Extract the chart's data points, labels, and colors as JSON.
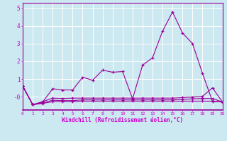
{
  "background_color": "#cce8f0",
  "line_color": "#990099",
  "grid_color": "#ffffff",
  "xlabel": "Windchill (Refroidissement éolien,°C)",
  "xlabel_color": "#cc00cc",
  "tick_color": "#cc00cc",
  "xlim": [
    0,
    20
  ],
  "ylim": [
    -0.75,
    5.3
  ],
  "yticks": [
    0,
    1,
    2,
    3,
    4,
    5
  ],
  "ytick_labels": [
    "-0",
    "1",
    "2",
    "3",
    "4",
    "5"
  ],
  "xticks": [
    0,
    1,
    2,
    3,
    4,
    5,
    6,
    7,
    8,
    9,
    10,
    11,
    12,
    13,
    14,
    15,
    16,
    17,
    18,
    19,
    20
  ],
  "line1_x": [
    0,
    1,
    2,
    3,
    4,
    5,
    6,
    7,
    8,
    9,
    10,
    11,
    12,
    13,
    14,
    15,
    16,
    17,
    18,
    19,
    20
  ],
  "line1_y": [
    0.6,
    -0.45,
    -0.3,
    0.45,
    0.38,
    0.38,
    1.1,
    0.93,
    1.5,
    1.38,
    1.42,
    -0.12,
    1.78,
    2.2,
    3.7,
    4.78,
    3.6,
    3.0,
    1.32,
    -0.27,
    -0.3
  ],
  "line2_x": [
    0,
    1,
    2,
    3,
    4,
    5,
    6,
    7,
    8,
    9,
    10,
    11,
    12,
    13,
    14,
    15,
    16,
    17,
    18,
    19,
    20
  ],
  "line2_y": [
    0.6,
    -0.45,
    -0.28,
    -0.08,
    -0.1,
    -0.08,
    -0.08,
    -0.08,
    -0.08,
    -0.08,
    -0.08,
    -0.08,
    -0.08,
    -0.08,
    -0.08,
    -0.08,
    -0.05,
    -0.02,
    0.02,
    0.5,
    -0.3
  ],
  "line3_x": [
    0,
    1,
    2,
    3,
    4,
    5,
    6,
    7,
    8,
    9,
    10,
    11,
    12,
    13,
    14,
    15,
    16,
    17,
    18,
    19,
    20
  ],
  "line3_y": [
    0.6,
    -0.45,
    -0.35,
    -0.2,
    -0.22,
    -0.22,
    -0.18,
    -0.18,
    -0.18,
    -0.18,
    -0.18,
    -0.18,
    -0.18,
    -0.18,
    -0.18,
    -0.18,
    -0.15,
    -0.12,
    -0.1,
    -0.1,
    -0.3
  ],
  "line4_x": [
    0,
    1,
    2,
    3,
    4,
    5,
    6,
    7,
    8,
    9,
    10,
    11,
    12,
    13,
    14,
    15,
    16,
    17,
    18,
    19,
    20
  ],
  "line4_y": [
    0.6,
    -0.45,
    -0.38,
    -0.28,
    -0.28,
    -0.28,
    -0.25,
    -0.25,
    -0.25,
    -0.25,
    -0.25,
    -0.25,
    -0.25,
    -0.25,
    -0.25,
    -0.25,
    -0.25,
    -0.25,
    -0.25,
    -0.25,
    -0.3
  ]
}
